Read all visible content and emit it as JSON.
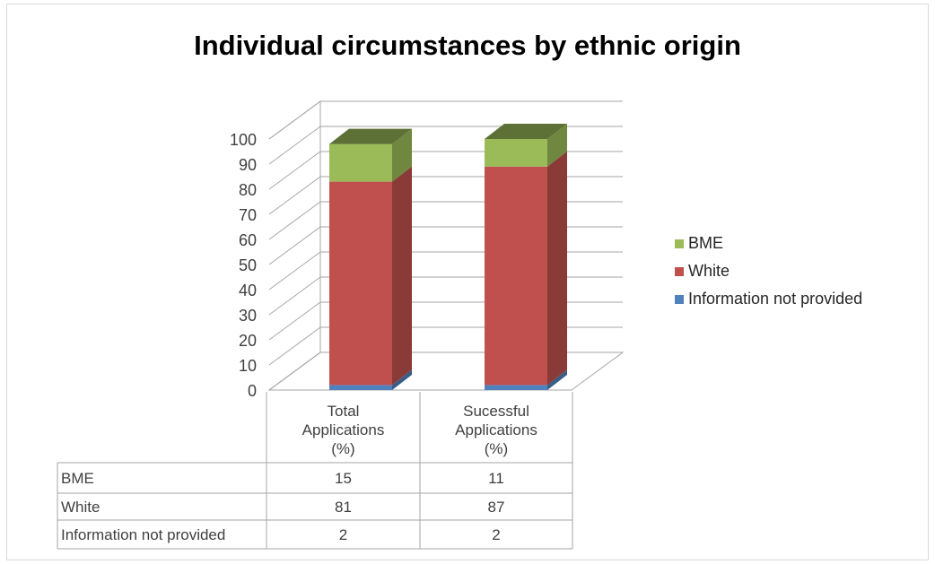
{
  "chart_data": {
    "type": "bar",
    "stacked": true,
    "three_d": true,
    "title": "Individual  circumstances by ethnic origin",
    "categories": [
      "Total Applications (%)",
      "Sucessful Applications (%)"
    ],
    "category_lines": [
      [
        "Total",
        "Applications",
        "(%)"
      ],
      [
        "Sucessful",
        "Applications",
        "(%)"
      ]
    ],
    "series": [
      {
        "name": "Information not provided",
        "values": [
          2,
          2
        ],
        "color": "#4f81bd"
      },
      {
        "name": "White",
        "values": [
          81,
          87
        ],
        "color": "#c0504d"
      },
      {
        "name": "BME",
        "values": [
          15,
          11
        ],
        "color": "#9bbb59"
      }
    ],
    "legend_order": [
      "BME",
      "White",
      "Information not provided"
    ],
    "legend_position": "right",
    "ylim": [
      0,
      100
    ],
    "yticks": [
      0,
      10,
      20,
      30,
      40,
      50,
      60,
      70,
      80,
      90,
      100
    ],
    "data_table": true,
    "table_rows": [
      {
        "label": "BME",
        "values": [
          "15",
          "11"
        ]
      },
      {
        "label": "White",
        "values": [
          "81",
          "87"
        ]
      },
      {
        "label": "Information not provided",
        "values": [
          "2",
          "2"
        ]
      }
    ],
    "grid": true
  }
}
